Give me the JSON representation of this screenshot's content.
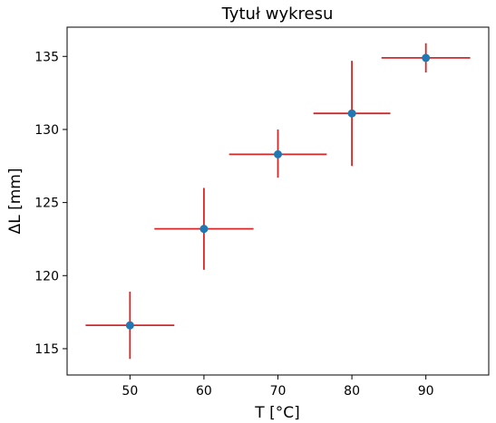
{
  "chart_data": {
    "type": "scatter",
    "title": "Tytuł wykresu",
    "xlabel": "T [°C]",
    "ylabel": "ΔL [mm]",
    "xlim": [
      41.5,
      98.5
    ],
    "ylim": [
      113.2,
      137.0
    ],
    "xticks": [
      50,
      60,
      70,
      80,
      90
    ],
    "yticks": [
      115,
      120,
      125,
      130,
      135
    ],
    "grid": false,
    "points": [
      {
        "x": 50,
        "y": 116.6,
        "xerr": 6.0,
        "yerr_low": 2.3,
        "yerr_high": 2.3
      },
      {
        "x": 60,
        "y": 123.2,
        "xerr": 6.7,
        "yerr_low": 2.8,
        "yerr_high": 2.8
      },
      {
        "x": 70,
        "y": 128.3,
        "xerr": 6.6,
        "yerr_low": 1.6,
        "yerr_high": 1.7
      },
      {
        "x": 80,
        "y": 131.1,
        "xerr": 5.2,
        "yerr_low": 3.6,
        "yerr_high": 3.6
      },
      {
        "x": 90,
        "y": 134.9,
        "xerr": 6.0,
        "yerr_low": 1.0,
        "yerr_high": 1.0
      }
    ],
    "colors": {
      "marker": "#1f77b4",
      "errorbar": "#d62728"
    }
  }
}
